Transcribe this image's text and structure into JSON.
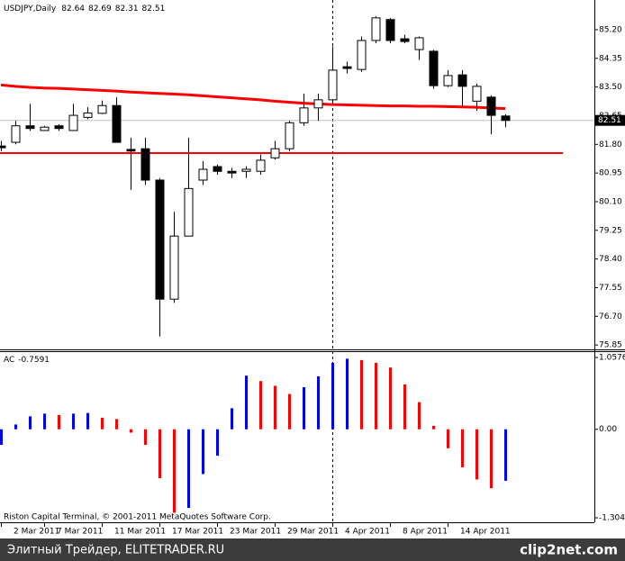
{
  "chart_data": [
    {
      "type": "candlestick",
      "title": "USDJPY,Daily",
      "categories": [
        "2 Mar 2011",
        null,
        null,
        "7 Mar 2011",
        null,
        null,
        null,
        "11 Mar 2011",
        null,
        null,
        null,
        "17 Mar 2011",
        null,
        null,
        null,
        "23 Mar 2011",
        null,
        null,
        null,
        "29 Mar 2011",
        null,
        null,
        null,
        "4 Apr 2011",
        null,
        null,
        null,
        "8 Apr 2011",
        null,
        null,
        null,
        "14 Apr 2011",
        null,
        null,
        null,
        null
      ],
      "open": [
        81.75,
        81.86,
        82.35,
        82.21,
        82.35,
        82.21,
        82.6,
        82.72,
        82.95,
        81.65,
        81.67,
        80.74,
        77.21,
        79.08,
        80.74,
        81.14,
        81.0,
        81.0,
        81.0,
        81.4,
        81.67,
        82.44,
        82.88,
        83.12,
        84.1,
        84.02,
        84.88,
        85.5,
        84.93,
        84.61,
        84.56,
        83.54,
        83.86,
        83.08,
        83.2,
        82.64
      ],
      "high": [
        81.9,
        82.5,
        83.0,
        82.35,
        82.4,
        83.0,
        82.9,
        83.1,
        83.2,
        82.0,
        82.0,
        80.8,
        79.8,
        82.0,
        81.3,
        81.2,
        81.1,
        81.15,
        81.5,
        81.9,
        82.5,
        83.3,
        83.3,
        84.7,
        84.25,
        85.0,
        85.6,
        85.55,
        85.05,
        85.0,
        84.6,
        84.0,
        84.0,
        83.6,
        83.25,
        82.69
      ],
      "low": [
        81.6,
        81.8,
        82.2,
        82.2,
        82.2,
        82.2,
        82.55,
        82.7,
        81.85,
        80.45,
        80.6,
        76.1,
        77.1,
        79.1,
        80.6,
        80.9,
        80.8,
        80.8,
        80.9,
        81.35,
        81.6,
        82.35,
        82.5,
        83.0,
        83.9,
        83.95,
        84.8,
        84.8,
        84.8,
        84.3,
        83.45,
        83.5,
        82.9,
        82.8,
        82.1,
        82.31
      ],
      "close": [
        81.7,
        82.35,
        82.27,
        82.31,
        82.27,
        82.66,
        82.73,
        82.95,
        81.86,
        81.6,
        80.74,
        77.21,
        79.08,
        80.49,
        81.06,
        81.0,
        80.95,
        81.06,
        81.33,
        81.67,
        82.44,
        82.88,
        83.12,
        84.0,
        84.05,
        84.88,
        85.55,
        84.88,
        84.85,
        84.96,
        83.54,
        83.84,
        83.52,
        83.52,
        82.66,
        82.51
      ],
      "up_color": "#ffffff",
      "down_color": "#000000",
      "ma": {
        "color": "#ff0000",
        "values": [
          83.56,
          83.52,
          83.49,
          83.47,
          83.46,
          83.44,
          83.42,
          83.4,
          83.38,
          83.35,
          83.33,
          83.31,
          83.29,
          83.27,
          83.24,
          83.21,
          83.18,
          83.15,
          83.12,
          83.08,
          83.05,
          83.02,
          83.0,
          82.98,
          82.97,
          82.96,
          82.95,
          82.94,
          82.94,
          82.93,
          82.93,
          82.92,
          82.91,
          82.9,
          82.88,
          82.86
        ]
      },
      "hline": {
        "value": 81.54,
        "color": "#ff0000"
      },
      "ylim": [
        75.72,
        86.08
      ],
      "yticks": [
        {
          "value": 85.2,
          "label": "85.20"
        },
        84.35,
        {
          "value": 83.5,
          "label": "83.50"
        },
        82.65,
        {
          "value": 81.8,
          "label": "81.80"
        },
        80.95,
        {
          "value": 80.1,
          "label": "80.10"
        },
        79.25,
        {
          "value": 78.4,
          "label": "78.40"
        },
        77.55,
        {
          "value": 76.7,
          "label": "76.70"
        },
        75.85
      ]
    },
    {
      "type": "bar",
      "title": "AC",
      "values": [
        -0.23,
        0.07,
        0.19,
        0.23,
        0.21,
        0.23,
        0.24,
        0.17,
        0.15,
        -0.05,
        -0.23,
        -0.72,
        -1.23,
        -1.16,
        -0.66,
        -0.39,
        0.31,
        0.79,
        0.71,
        0.64,
        0.52,
        0.62,
        0.78,
        0.98,
        1.04,
        1.02,
        0.98,
        0.91,
        0.66,
        0.4,
        0.05,
        -0.28,
        -0.56,
        -0.74,
        -0.87,
        -0.7591
      ],
      "up_color": "#0000ff",
      "down_color": "#ff0000",
      "ylim": [
        -1.3045,
        1.0576
      ],
      "yticks": [
        1.0576,
        {
          "value": 0,
          "label": "0.00"
        },
        -1.3045
      ]
    }
  ],
  "copyright": "Riston Capital Terminal, © 2001-2011 MetaQuotes Software Corp.",
  "watermark": "Элитный Трейдер, ELITETRADER.RU",
  "logo": "clip2net.com"
}
